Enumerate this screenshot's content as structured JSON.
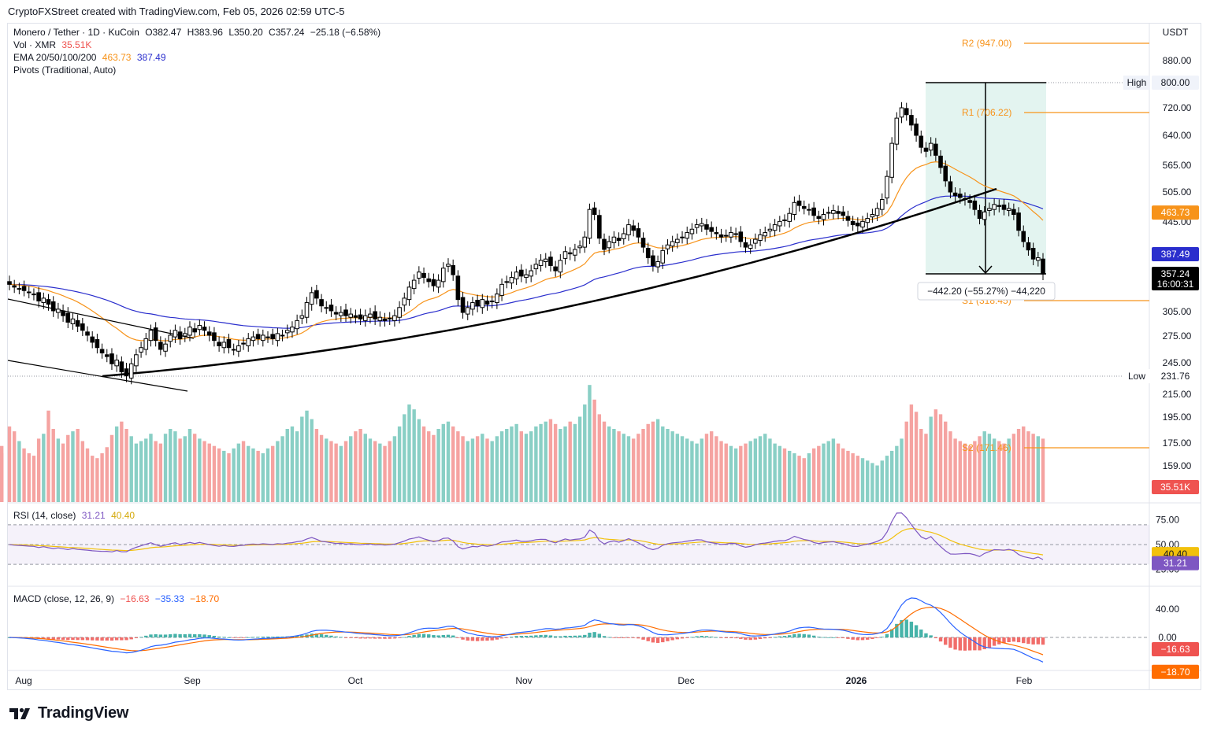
{
  "header": {
    "attribution": "CryptoFXStreet created with TradingView.com, Feb 05, 2026 02:59 UTC-5"
  },
  "legend": {
    "symbol": "Monero / Tether · 1D · KuCoin",
    "open": "O382.47",
    "high": "H383.96",
    "low": "L350.20",
    "close": "C357.24",
    "change": "−25.18 (−6.58%)",
    "vol_label": "Vol · XMR",
    "vol_value": "35.51K",
    "ema_label": "EMA 20/50/100/200",
    "ema_50": "463.73",
    "ema_200": "387.49",
    "pivots_label": "Pivots (Traditional, Auto)",
    "rsi_label": "RSI (14, close)",
    "rsi_value": "31.21",
    "rsi_ma": "40.40",
    "macd_label": "MACD (close, 12, 26, 9)",
    "macd_hist": "−16.63",
    "macd_line": "−35.33",
    "macd_signal": "−18.70"
  },
  "currency": "USDT",
  "logo_text": "TradingView",
  "colors": {
    "up": "#000000",
    "down": "#000000",
    "vol_up": "#89cfc5",
    "vol_down": "#f5a3a1",
    "ema50": "#f7931a",
    "ema200": "#2a2ecd",
    "pivot": "#f7931a",
    "rsi": "#7e57c2",
    "rsi_ma": "#f2c10c",
    "macd": "#2962ff",
    "signal": "#ff6d00",
    "hist_pos": "#26a69a",
    "hist_neg": "#ef5350",
    "range_box": "#d9f0eb"
  },
  "chart_data": [
    {
      "type": "candlestick",
      "title": "Monero / Tether · 1D · KuCoin",
      "y_axis_ticks": [
        "880.00",
        "720.00",
        "640.00",
        "565.00",
        "505.00",
        "445.00",
        "305.00",
        "275.00",
        "245.00",
        "215.00",
        "195.00",
        "175.00",
        "159.00"
      ],
      "price_labels": [
        {
          "name": "High",
          "value": "800.00"
        },
        {
          "name": "Low",
          "value": "231.76"
        },
        {
          "name": "EMA 50",
          "value": "463.73"
        },
        {
          "name": "EMA 200",
          "value": "387.49"
        },
        {
          "name": "Last",
          "value": "357.24",
          "countdown": "16:00:31"
        }
      ],
      "pivots": [
        {
          "name": "R2",
          "value": 947.0,
          "label": "R2 (947.00)"
        },
        {
          "name": "R1",
          "value": 706.22,
          "label": "R1 (706.22)"
        },
        {
          "name": "S1",
          "value": 318.45,
          "label": "S1 (318.45)"
        },
        {
          "name": "S2",
          "value": 171.46,
          "label": "S2 (171.46)"
        }
      ],
      "x_labels": [
        "Aug",
        "Sep",
        "Oct",
        "Nov",
        "Dec",
        "2026",
        "Feb"
      ],
      "measurement": "−442.20 (−55.27%) −44,220",
      "ohlc_closes": [
        342,
        338,
        336,
        333,
        330,
        327,
        318,
        322,
        314,
        306,
        308,
        300,
        292,
        296,
        287,
        282,
        276,
        268,
        262,
        256,
        252,
        244,
        248,
        236,
        232,
        244,
        254,
        262,
        272,
        282,
        270,
        260,
        266,
        276,
        282,
        272,
        278,
        286,
        280,
        288,
        282,
        276,
        270,
        264,
        268,
        262,
        260,
        264,
        266,
        272,
        274,
        272,
        276,
        274,
        272,
        278,
        276,
        282,
        286,
        294,
        300,
        316,
        330,
        322,
        312,
        310,
        306,
        302,
        304,
        300,
        302,
        298,
        296,
        300,
        302,
        296,
        298,
        294,
        296,
        300,
        310,
        322,
        338,
        348,
        360,
        352,
        346,
        340,
        348,
        366,
        372,
        356,
        320,
        304,
        310,
        316,
        312,
        320,
        314,
        318,
        328,
        342,
        346,
        352,
        360,
        354,
        356,
        362,
        372,
        378,
        380,
        370,
        362,
        378,
        392,
        388,
        396,
        402,
        418,
        470,
        460,
        416,
        396,
        410,
        418,
        412,
        424,
        440,
        430,
        418,
        400,
        382,
        370,
        376,
        394,
        404,
        410,
        414,
        418,
        426,
        432,
        440,
        442,
        432,
        428,
        424,
        418,
        420,
        426,
        424,
        410,
        400,
        404,
        414,
        422,
        426,
        432,
        440,
        446,
        448,
        462,
        484,
        478,
        472,
        470,
        458,
        452,
        460,
        464,
        468,
        462,
        458,
        448,
        440,
        438,
        446,
        452,
        460,
        472,
        490,
        540,
        620,
        690,
        720,
        700,
        670,
        640,
        610,
        600,
        620,
        590,
        560,
        530,
        505,
        498,
        494,
        490,
        484,
        470,
        452,
        465,
        472,
        480,
        476,
        470,
        472,
        460,
        430,
        410,
        395,
        380,
        382,
        357
      ],
      "volume_scale_note": "volume bars in relative units",
      "volume": [
        62,
        58,
        50,
        44,
        40,
        38,
        52,
        56,
        75,
        60,
        52,
        48,
        55,
        58,
        60,
        50,
        44,
        38,
        36,
        40,
        45,
        55,
        62,
        66,
        60,
        54,
        48,
        50,
        52,
        56,
        50,
        48,
        56,
        60,
        58,
        52,
        54,
        60,
        56,
        52,
        50,
        48,
        46,
        44,
        42,
        40,
        44,
        48,
        50,
        46,
        44,
        42,
        40,
        44,
        46,
        50,
        54,
        60,
        62,
        58,
        70,
        75,
        68,
        60,
        55,
        52,
        50,
        48,
        46,
        50,
        54,
        58,
        60,
        56,
        52,
        50,
        48,
        46,
        50,
        54,
        62,
        72,
        80,
        76,
        68,
        62,
        58,
        55,
        60,
        64,
        66,
        62,
        58,
        54,
        50,
        52,
        54,
        56,
        52,
        50,
        54,
        58,
        60,
        62,
        64,
        58,
        56,
        58,
        62,
        64,
        66,
        68,
        64,
        60,
        62,
        66,
        64,
        70,
        80,
        96,
        84,
        72,
        66,
        62,
        60,
        58,
        56,
        54,
        52,
        56,
        60,
        64,
        66,
        68,
        62,
        60,
        58,
        56,
        54,
        52,
        50,
        48,
        52,
        56,
        58,
        54,
        50,
        48,
        46,
        44,
        46,
        48,
        50,
        52,
        54,
        56,
        52,
        48,
        46,
        44,
        42,
        40,
        38,
        36,
        40,
        44,
        46,
        48,
        50,
        52,
        48,
        44,
        42,
        40,
        38,
        36,
        34,
        32,
        30,
        34,
        38,
        42,
        46,
        52,
        66,
        80,
        74,
        60,
        56,
        70,
        76,
        72,
        66,
        58,
        52,
        50,
        48,
        46,
        50,
        54,
        58,
        56,
        52,
        50,
        48,
        52,
        56,
        60,
        62,
        58,
        56,
        54,
        52,
        46,
        40
      ],
      "rsi_y_ticks": [
        "75.00",
        "50.00",
        "25.00"
      ],
      "rsi_levels": [
        70,
        50,
        30
      ],
      "macd_y_ticks": [
        "40.00",
        "0.00"
      ]
    }
  ]
}
